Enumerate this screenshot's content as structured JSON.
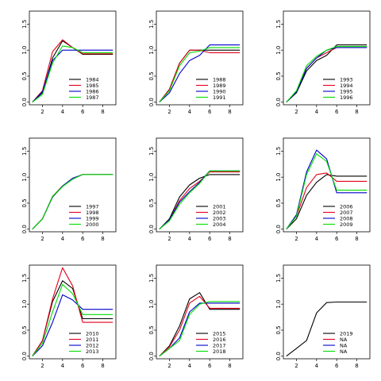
{
  "colors": {
    "black": "#000000",
    "red": "#e0001a",
    "blue": "#0000cc",
    "green": "#00dd00"
  },
  "chart_data": [
    {
      "type": "line",
      "xlim": [
        0.7,
        9.3
      ],
      "ylim": [
        -0.05,
        1.75
      ],
      "xticks": [
        2,
        4,
        6,
        8
      ],
      "yticks": [
        0.0,
        0.5,
        1.0,
        1.5
      ],
      "xtick_labels": [
        "2",
        "4",
        "6",
        "8"
      ],
      "ytick_labels": [
        "0.0",
        "0.5",
        "1.0",
        "1.5"
      ],
      "legend_position": "bottom-right",
      "series": [
        {
          "name": "1984",
          "color": "#000000",
          "x": [
            1,
            2,
            3,
            4,
            5,
            6,
            7,
            8,
            9
          ],
          "y": [
            0.0,
            0.18,
            0.85,
            1.18,
            1.05,
            0.92,
            0.92,
            0.92,
            0.92
          ]
        },
        {
          "name": "1985",
          "color": "#e0001a",
          "x": [
            1,
            2,
            3,
            4,
            5,
            6,
            7,
            8,
            9
          ],
          "y": [
            0.0,
            0.22,
            0.97,
            1.2,
            1.05,
            0.93,
            0.93,
            0.93,
            0.93
          ]
        },
        {
          "name": "1986",
          "color": "#0000cc",
          "x": [
            1,
            2,
            3,
            4,
            5,
            6,
            7,
            8,
            9
          ],
          "y": [
            0.0,
            0.2,
            0.8,
            1.0,
            1.0,
            1.0,
            1.0,
            1.0,
            1.0
          ]
        },
        {
          "name": "1987",
          "color": "#00dd00",
          "x": [
            1,
            2,
            3,
            4,
            5,
            6,
            7,
            8,
            9
          ],
          "y": [
            0.0,
            0.15,
            0.75,
            1.08,
            1.05,
            0.95,
            0.95,
            0.95,
            0.95
          ]
        }
      ]
    },
    {
      "type": "line",
      "xlim": [
        0.7,
        9.3
      ],
      "ylim": [
        -0.05,
        1.75
      ],
      "xticks": [
        2,
        4,
        6,
        8
      ],
      "yticks": [
        0.0,
        0.5,
        1.0,
        1.5
      ],
      "xtick_labels": [
        "2",
        "4",
        "6",
        "8"
      ],
      "ytick_labels": [
        "0.0",
        "0.5",
        "1.0",
        "1.5"
      ],
      "legend_position": "bottom-right",
      "series": [
        {
          "name": "1988",
          "color": "#000000",
          "x": [
            1,
            2,
            3,
            4,
            5,
            6,
            7,
            8,
            9
          ],
          "y": [
            0.0,
            0.25,
            0.75,
            1.0,
            1.0,
            1.0,
            1.0,
            1.0,
            1.0
          ]
        },
        {
          "name": "1989",
          "color": "#e0001a",
          "x": [
            1,
            2,
            3,
            4,
            5,
            6,
            7,
            8,
            9
          ],
          "y": [
            0.0,
            0.25,
            0.75,
            1.0,
            1.0,
            0.95,
            0.95,
            0.95,
            0.95
          ]
        },
        {
          "name": "1990",
          "color": "#0000cc",
          "x": [
            1,
            2,
            3,
            4,
            5,
            6,
            7,
            8,
            9
          ],
          "y": [
            0.0,
            0.18,
            0.55,
            0.8,
            0.9,
            1.1,
            1.1,
            1.1,
            1.1
          ]
        },
        {
          "name": "1991",
          "color": "#00dd00",
          "x": [
            1,
            2,
            3,
            4,
            5,
            6,
            7,
            8,
            9
          ],
          "y": [
            0.0,
            0.22,
            0.7,
            0.95,
            0.98,
            1.05,
            1.05,
            1.05,
            1.05
          ]
        }
      ]
    },
    {
      "type": "line",
      "xlim": [
        0.7,
        9.3
      ],
      "ylim": [
        -0.05,
        1.75
      ],
      "xticks": [
        2,
        4,
        6,
        8
      ],
      "yticks": [
        0.0,
        0.5,
        1.0,
        1.5
      ],
      "xtick_labels": [
        "2",
        "4",
        "6",
        "8"
      ],
      "ytick_labels": [
        "0.0",
        "0.5",
        "1.0",
        "1.5"
      ],
      "legend_position": "bottom-right",
      "series": [
        {
          "name": "1993",
          "color": "#000000",
          "x": [
            1,
            2,
            3,
            4,
            5,
            6,
            7,
            8,
            9
          ],
          "y": [
            0.0,
            0.18,
            0.6,
            0.8,
            0.9,
            1.1,
            1.1,
            1.1,
            1.1
          ]
        },
        {
          "name": "1994",
          "color": "#e0001a",
          "x": [
            1,
            2,
            3,
            4,
            5,
            6,
            7,
            8,
            9
          ],
          "y": [
            0.0,
            0.2,
            0.65,
            0.85,
            0.95,
            1.05,
            1.05,
            1.05,
            1.05
          ]
        },
        {
          "name": "1995",
          "color": "#0000cc",
          "x": [
            1,
            2,
            3,
            4,
            5,
            6,
            7,
            8,
            9
          ],
          "y": [
            0.0,
            0.2,
            0.65,
            0.85,
            1.0,
            1.05,
            1.05,
            1.05,
            1.05
          ]
        },
        {
          "name": "1996",
          "color": "#00dd00",
          "x": [
            1,
            2,
            3,
            4,
            5,
            6,
            7,
            8,
            9
          ],
          "y": [
            0.0,
            0.22,
            0.7,
            0.88,
            1.0,
            1.07,
            1.07,
            1.07,
            1.07
          ]
        }
      ]
    },
    {
      "type": "line",
      "xlim": [
        0.7,
        9.3
      ],
      "ylim": [
        -0.05,
        1.75
      ],
      "xticks": [
        2,
        4,
        6,
        8
      ],
      "yticks": [
        0.0,
        0.5,
        1.0,
        1.5
      ],
      "xtick_labels": [
        "2",
        "4",
        "6",
        "8"
      ],
      "ytick_labels": [
        "0.0",
        "0.5",
        "1.0",
        "1.5"
      ],
      "legend_position": "bottom-right",
      "series": [
        {
          "name": "1997",
          "color": "#000000",
          "x": [
            1,
            2,
            3,
            4,
            5,
            6,
            7,
            8,
            9
          ],
          "y": [
            0.0,
            0.2,
            0.62,
            0.82,
            0.97,
            1.05,
            1.05,
            1.05,
            1.05
          ]
        },
        {
          "name": "1998",
          "color": "#e0001a",
          "x": [
            1,
            2,
            3,
            4,
            5,
            6,
            7,
            8,
            9
          ],
          "y": [
            0.0,
            0.2,
            0.63,
            0.83,
            0.97,
            1.05,
            1.05,
            1.05,
            1.05
          ]
        },
        {
          "name": "1999",
          "color": "#0000cc",
          "x": [
            1,
            2,
            3,
            4,
            5,
            6,
            7,
            8,
            9
          ],
          "y": [
            0.0,
            0.2,
            0.62,
            0.83,
            0.98,
            1.05,
            1.05,
            1.05,
            1.05
          ]
        },
        {
          "name": "2000",
          "color": "#00dd00",
          "x": [
            1,
            2,
            3,
            4,
            5,
            6,
            7,
            8,
            9
          ],
          "y": [
            0.0,
            0.2,
            0.63,
            0.82,
            0.96,
            1.05,
            1.05,
            1.05,
            1.05
          ]
        }
      ]
    },
    {
      "type": "line",
      "xlim": [
        0.7,
        9.3
      ],
      "ylim": [
        -0.05,
        1.75
      ],
      "xticks": [
        2,
        4,
        6,
        8
      ],
      "yticks": [
        0.0,
        0.5,
        1.0,
        1.5
      ],
      "xtick_labels": [
        "2",
        "4",
        "6",
        "8"
      ],
      "ytick_labels": [
        "0.0",
        "0.5",
        "1.0",
        "1.5"
      ],
      "legend_position": "bottom-right",
      "series": [
        {
          "name": "2001",
          "color": "#000000",
          "x": [
            1,
            2,
            3,
            4,
            5,
            6,
            7,
            8,
            9
          ],
          "y": [
            0.0,
            0.2,
            0.62,
            0.85,
            0.98,
            1.05,
            1.05,
            1.05,
            1.05
          ]
        },
        {
          "name": "2002",
          "color": "#e0001a",
          "x": [
            1,
            2,
            3,
            4,
            5,
            6,
            7,
            8,
            9
          ],
          "y": [
            0.0,
            0.18,
            0.55,
            0.78,
            0.92,
            1.1,
            1.1,
            1.1,
            1.1
          ]
        },
        {
          "name": "2003",
          "color": "#0000cc",
          "x": [
            1,
            2,
            3,
            4,
            5,
            6,
            7,
            8,
            9
          ],
          "y": [
            0.0,
            0.18,
            0.52,
            0.72,
            0.9,
            1.12,
            1.12,
            1.12,
            1.12
          ]
        },
        {
          "name": "2004",
          "color": "#00dd00",
          "x": [
            1,
            2,
            3,
            4,
            5,
            6,
            7,
            8,
            9
          ],
          "y": [
            0.0,
            0.16,
            0.48,
            0.7,
            0.88,
            1.12,
            1.12,
            1.12,
            1.12
          ]
        }
      ]
    },
    {
      "type": "line",
      "xlim": [
        0.7,
        9.3
      ],
      "ylim": [
        -0.05,
        1.75
      ],
      "xticks": [
        2,
        4,
        6,
        8
      ],
      "yticks": [
        0.0,
        0.5,
        1.0,
        1.5
      ],
      "xtick_labels": [
        "2",
        "4",
        "6",
        "8"
      ],
      "ytick_labels": [
        "0.0",
        "0.5",
        "1.0",
        "1.5"
      ],
      "legend_position": "bottom-right",
      "series": [
        {
          "name": "2006",
          "color": "#000000",
          "x": [
            1,
            2,
            3,
            4,
            5,
            6,
            7,
            8,
            9
          ],
          "y": [
            0.0,
            0.2,
            0.65,
            0.9,
            1.05,
            1.02,
            1.02,
            1.02,
            1.02
          ]
        },
        {
          "name": "2007",
          "color": "#e0001a",
          "x": [
            1,
            2,
            3,
            4,
            5,
            6,
            7,
            8,
            9
          ],
          "y": [
            0.0,
            0.25,
            0.8,
            1.05,
            1.08,
            0.92,
            0.92,
            0.92,
            0.92
          ]
        },
        {
          "name": "2008",
          "color": "#0000cc",
          "x": [
            1,
            2,
            3,
            4,
            5,
            6,
            7,
            8,
            9
          ],
          "y": [
            0.0,
            0.28,
            1.1,
            1.52,
            1.35,
            0.7,
            0.7,
            0.7,
            0.7
          ]
        },
        {
          "name": "2009",
          "color": "#00dd00",
          "x": [
            1,
            2,
            3,
            4,
            5,
            6,
            7,
            8,
            9
          ],
          "y": [
            0.0,
            0.25,
            1.05,
            1.45,
            1.3,
            0.75,
            0.75,
            0.75,
            0.75
          ]
        }
      ]
    },
    {
      "type": "line",
      "xlim": [
        0.7,
        9.3
      ],
      "ylim": [
        -0.05,
        1.75
      ],
      "xticks": [
        2,
        4,
        6,
        8
      ],
      "yticks": [
        0.0,
        0.5,
        1.0,
        1.5
      ],
      "xtick_labels": [
        "2",
        "4",
        "6",
        "8"
      ],
      "ytick_labels": [
        "0.0",
        "0.5",
        "1.0",
        "1.5"
      ],
      "legend_position": "bottom-right",
      "series": [
        {
          "name": "2010",
          "color": "#000000",
          "x": [
            1,
            2,
            3,
            4,
            5,
            6,
            7,
            8,
            9
          ],
          "y": [
            0.0,
            0.3,
            1.05,
            1.45,
            1.3,
            0.72,
            0.72,
            0.72,
            0.72
          ]
        },
        {
          "name": "2011",
          "color": "#e0001a",
          "x": [
            1,
            2,
            3,
            4,
            5,
            6,
            7,
            8,
            9
          ],
          "y": [
            0.0,
            0.3,
            1.1,
            1.7,
            1.35,
            0.65,
            0.65,
            0.65,
            0.65
          ]
        },
        {
          "name": "2012",
          "color": "#0000cc",
          "x": [
            1,
            2,
            3,
            4,
            5,
            6,
            7,
            8,
            9
          ],
          "y": [
            0.0,
            0.2,
            0.65,
            1.18,
            1.08,
            0.9,
            0.9,
            0.9,
            0.9
          ]
        },
        {
          "name": "2013",
          "color": "#00dd00",
          "x": [
            1,
            2,
            3,
            4,
            5,
            6,
            7,
            8,
            9
          ],
          "y": [
            0.0,
            0.25,
            0.85,
            1.38,
            1.2,
            0.8,
            0.8,
            0.8,
            0.8
          ]
        }
      ]
    },
    {
      "type": "line",
      "xlim": [
        0.7,
        9.3
      ],
      "ylim": [
        -0.05,
        1.75
      ],
      "xticks": [
        2,
        4,
        6,
        8
      ],
      "yticks": [
        0.0,
        0.5,
        1.0,
        1.5
      ],
      "xtick_labels": [
        "2",
        "4",
        "6",
        "8"
      ],
      "ytick_labels": [
        "0.0",
        "0.5",
        "1.0",
        "1.5"
      ],
      "legend_position": "bottom-right",
      "series": [
        {
          "name": "2015",
          "color": "#000000",
          "x": [
            1,
            2,
            3,
            4,
            5,
            6,
            7,
            8,
            9
          ],
          "y": [
            0.0,
            0.2,
            0.58,
            1.1,
            1.22,
            0.9,
            0.9,
            0.9,
            0.9
          ]
        },
        {
          "name": "2016",
          "color": "#e0001a",
          "x": [
            1,
            2,
            3,
            4,
            5,
            6,
            7,
            8,
            9
          ],
          "y": [
            0.0,
            0.18,
            0.5,
            1.02,
            1.15,
            0.92,
            0.92,
            0.92,
            0.92
          ]
        },
        {
          "name": "2017",
          "color": "#0000cc",
          "x": [
            1,
            2,
            3,
            4,
            5,
            6,
            7,
            8,
            9
          ],
          "y": [
            0.0,
            0.15,
            0.35,
            0.85,
            1.02,
            1.02,
            1.02,
            1.02,
            1.02
          ]
        },
        {
          "name": "2018",
          "color": "#00dd00",
          "x": [
            1,
            2,
            3,
            4,
            5,
            6,
            7,
            8,
            9
          ],
          "y": [
            0.0,
            0.15,
            0.3,
            0.8,
            1.0,
            1.05,
            1.05,
            1.05,
            1.05
          ]
        }
      ]
    },
    {
      "type": "line",
      "xlim": [
        0.7,
        9.3
      ],
      "ylim": [
        -0.05,
        1.75
      ],
      "xticks": [
        2,
        4,
        6,
        8
      ],
      "yticks": [
        0.0,
        0.5,
        1.0,
        1.5
      ],
      "xtick_labels": [
        "2",
        "4",
        "6",
        "8"
      ],
      "ytick_labels": [
        "0.0",
        "0.5",
        "1.0",
        "1.5"
      ],
      "legend_position": "bottom-right",
      "series": [
        {
          "name": "2019",
          "color": "#000000",
          "x": [
            1,
            2,
            3,
            4,
            5,
            6,
            7,
            8,
            9
          ],
          "y": [
            0.0,
            0.15,
            0.3,
            0.83,
            1.03,
            1.04,
            1.04,
            1.04,
            1.04
          ]
        },
        {
          "name": "NA",
          "color": "#e0001a",
          "x": [],
          "y": []
        },
        {
          "name": "NA",
          "color": "#0000cc",
          "x": [],
          "y": []
        },
        {
          "name": "NA",
          "color": "#00dd00",
          "x": [],
          "y": []
        }
      ]
    }
  ]
}
